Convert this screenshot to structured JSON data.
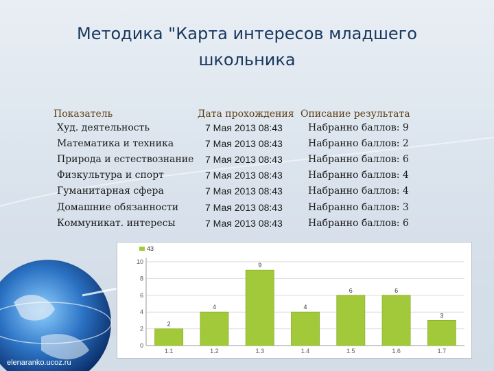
{
  "slide": {
    "title_line1": "Методика \"Карта интересов младшего",
    "title_line2": "школьника",
    "site": "elenaranko.ucoz.ru"
  },
  "table": {
    "headers": [
      "Показатель",
      "Дата прохождения",
      "Описание результата"
    ],
    "rows": [
      [
        "Худ. деятельность",
        "7 Мая 2013 08:43",
        "Набранно баллов: 9"
      ],
      [
        "Математика и техника",
        "7 Мая 2013 08:43",
        "Набранно баллов: 2"
      ],
      [
        "Природа и естествознание",
        "7 Мая 2013 08:43",
        "Набранно баллов: 6"
      ],
      [
        "Физкультура и спорт",
        "7 Мая 2013 08:43",
        "Набранно баллов: 4"
      ],
      [
        "Гуманитарная сфера",
        "7 Мая 2013 08:43",
        "Набранно баллов: 4"
      ],
      [
        "Домашние обязанности",
        "7 Мая 2013 08:43",
        "Набранно баллов: 3"
      ],
      [
        "Коммуникат. интересы",
        "7 Мая 2013 08:43",
        "Набранно баллов: 6"
      ]
    ]
  },
  "chart_data": {
    "type": "bar",
    "categories": [
      "1.1",
      "1.2",
      "1.3",
      "1.4",
      "1.5",
      "1.6",
      "1.7"
    ],
    "series": [
      {
        "name": "43",
        "values": [
          2,
          4,
          9,
          4,
          6,
          6,
          3
        ]
      }
    ],
    "ylim": [
      0,
      10
    ],
    "yticks": [
      0,
      2,
      4,
      6,
      8,
      10
    ],
    "grid": true,
    "legend": "top-left",
    "bar_color": "#a2c93a"
  }
}
